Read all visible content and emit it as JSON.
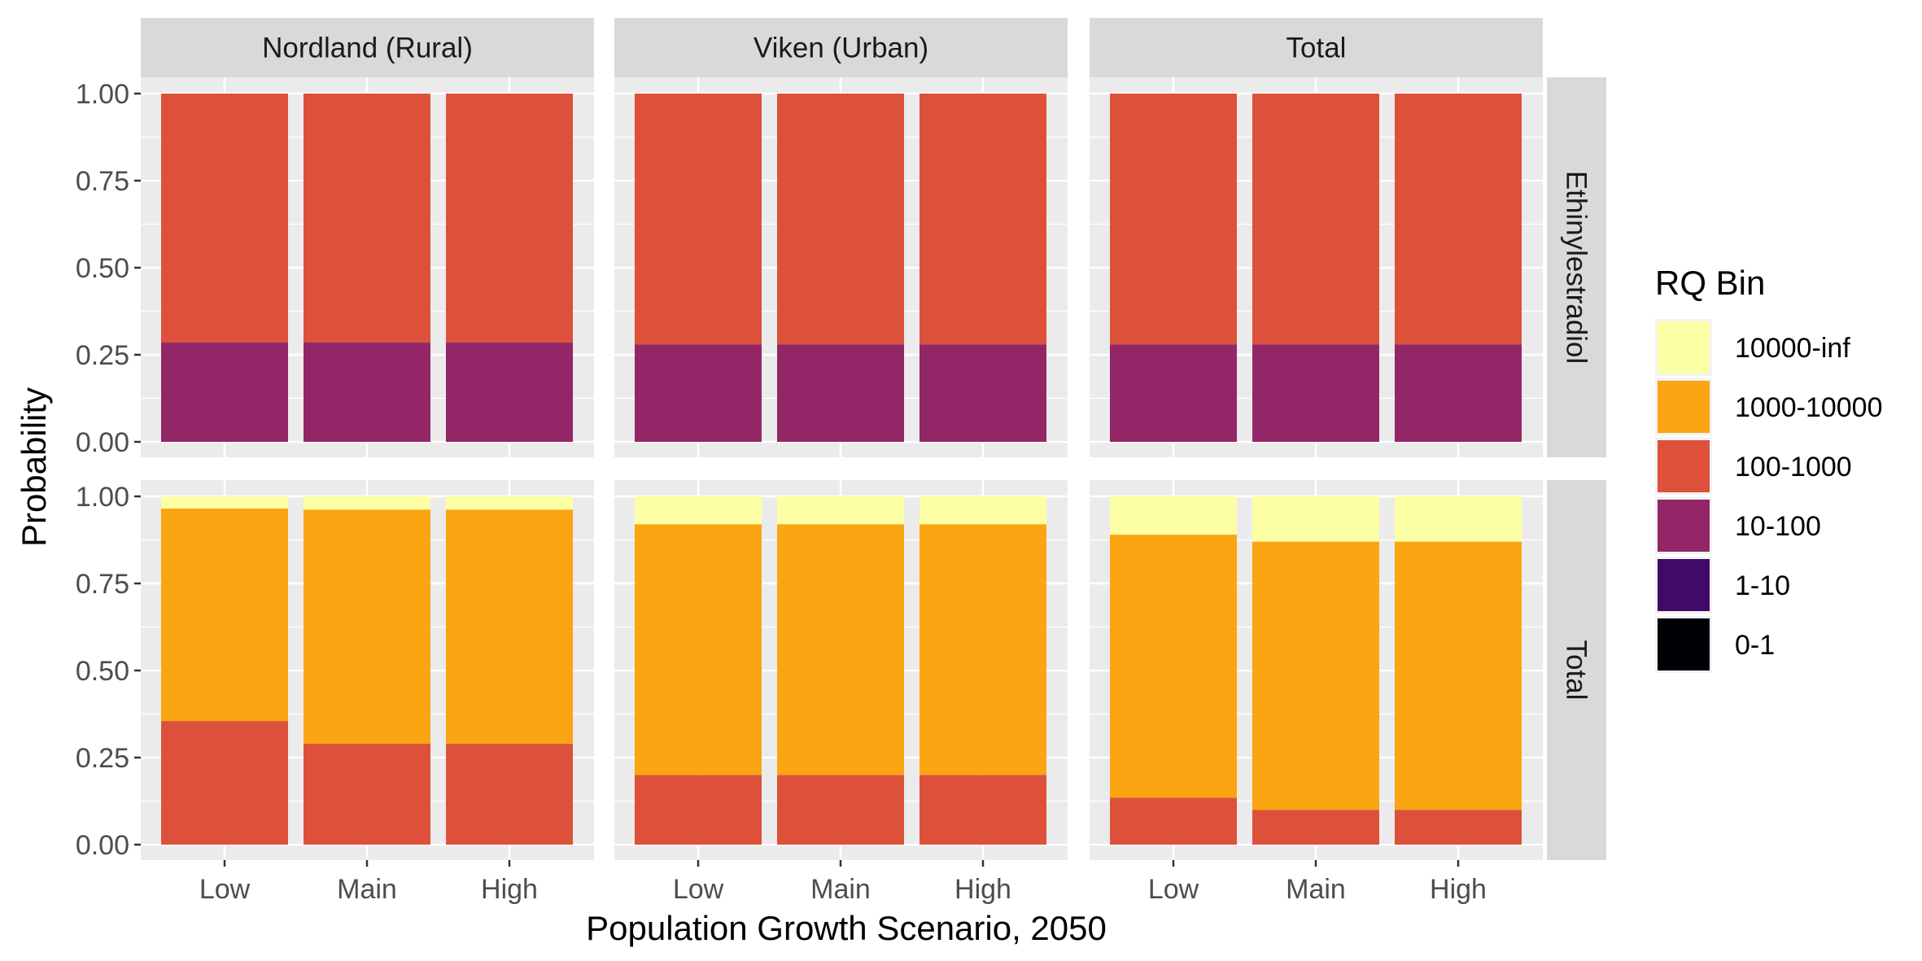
{
  "chart_data": {
    "type": "bar",
    "stacked": true,
    "xlabel": "Population Growth Scenario, 2050",
    "ylabel": "Probability",
    "ylim": [
      0,
      1
    ],
    "yticks": [
      "0.00",
      "0.25",
      "0.50",
      "0.75",
      "1.00"
    ],
    "categories": [
      "Low",
      "Main",
      "High"
    ],
    "column_facets": [
      "Nordland (Rural)",
      "Viken (Urban)",
      "Total"
    ],
    "row_facets": [
      "Ethinylestradiol",
      "Total"
    ],
    "legend": {
      "title": "RQ Bin",
      "position": "right",
      "entries": [
        "10000-inf",
        "1000-10000",
        "100-1000",
        "10-100",
        "1-10",
        "0-1"
      ]
    },
    "bins_bottom_to_top": [
      "0-1",
      "1-10",
      "10-100",
      "100-1000",
      "1000-10000",
      "10000-inf"
    ],
    "colors": {
      "10000-inf": "#FCFFA4",
      "1000-10000": "#FAA511",
      "100-1000": "#DD513A",
      "10-100": "#932667",
      "1-10": "#420A68",
      "0-1": "#000004"
    },
    "panels": [
      {
        "row": "Ethinylestradiol",
        "col": "Nordland (Rural)",
        "series": [
          {
            "name": "0-1",
            "values": [
              0,
              0,
              0
            ]
          },
          {
            "name": "1-10",
            "values": [
              0,
              0,
              0
            ]
          },
          {
            "name": "10-100",
            "values": [
              0.285,
              0.285,
              0.285
            ]
          },
          {
            "name": "100-1000",
            "values": [
              0.715,
              0.715,
              0.715
            ]
          },
          {
            "name": "1000-10000",
            "values": [
              0,
              0,
              0
            ]
          },
          {
            "name": "10000-inf",
            "values": [
              0,
              0,
              0
            ]
          }
        ]
      },
      {
        "row": "Ethinylestradiol",
        "col": "Viken (Urban)",
        "series": [
          {
            "name": "0-1",
            "values": [
              0,
              0,
              0
            ]
          },
          {
            "name": "1-10",
            "values": [
              0,
              0,
              0
            ]
          },
          {
            "name": "10-100",
            "values": [
              0.28,
              0.28,
              0.28
            ]
          },
          {
            "name": "100-1000",
            "values": [
              0.72,
              0.72,
              0.72
            ]
          },
          {
            "name": "1000-10000",
            "values": [
              0,
              0,
              0
            ]
          },
          {
            "name": "10000-inf",
            "values": [
              0,
              0,
              0
            ]
          }
        ]
      },
      {
        "row": "Ethinylestradiol",
        "col": "Total",
        "series": [
          {
            "name": "0-1",
            "values": [
              0,
              0,
              0
            ]
          },
          {
            "name": "1-10",
            "values": [
              0,
              0,
              0
            ]
          },
          {
            "name": "10-100",
            "values": [
              0.28,
              0.28,
              0.28
            ]
          },
          {
            "name": "100-1000",
            "values": [
              0.72,
              0.72,
              0.72
            ]
          },
          {
            "name": "1000-10000",
            "values": [
              0,
              0,
              0
            ]
          },
          {
            "name": "10000-inf",
            "values": [
              0,
              0,
              0
            ]
          }
        ]
      },
      {
        "row": "Total",
        "col": "Nordland (Rural)",
        "series": [
          {
            "name": "0-1",
            "values": [
              0,
              0,
              0
            ]
          },
          {
            "name": "1-10",
            "values": [
              0,
              0,
              0
            ]
          },
          {
            "name": "10-100",
            "values": [
              0,
              0,
              0
            ]
          },
          {
            "name": "100-1000",
            "values": [
              0.355,
              0.29,
              0.29
            ]
          },
          {
            "name": "1000-10000",
            "values": [
              0.61,
              0.672,
              0.672
            ]
          },
          {
            "name": "10000-inf",
            "values": [
              0.035,
              0.038,
              0.038
            ]
          }
        ]
      },
      {
        "row": "Total",
        "col": "Viken (Urban)",
        "series": [
          {
            "name": "0-1",
            "values": [
              0,
              0,
              0
            ]
          },
          {
            "name": "1-10",
            "values": [
              0,
              0,
              0
            ]
          },
          {
            "name": "10-100",
            "values": [
              0,
              0,
              0
            ]
          },
          {
            "name": "100-1000",
            "values": [
              0.2,
              0.2,
              0.2
            ]
          },
          {
            "name": "1000-10000",
            "values": [
              0.72,
              0.72,
              0.72
            ]
          },
          {
            "name": "10000-inf",
            "values": [
              0.08,
              0.08,
              0.08
            ]
          }
        ]
      },
      {
        "row": "Total",
        "col": "Total",
        "series": [
          {
            "name": "0-1",
            "values": [
              0,
              0,
              0
            ]
          },
          {
            "name": "1-10",
            "values": [
              0,
              0,
              0
            ]
          },
          {
            "name": "10-100",
            "values": [
              0,
              0,
              0
            ]
          },
          {
            "name": "100-1000",
            "values": [
              0.135,
              0.1,
              0.1
            ]
          },
          {
            "name": "1000-10000",
            "values": [
              0.755,
              0.77,
              0.77
            ]
          },
          {
            "name": "10000-inf",
            "values": [
              0.11,
              0.13,
              0.13
            ]
          }
        ]
      }
    ]
  }
}
